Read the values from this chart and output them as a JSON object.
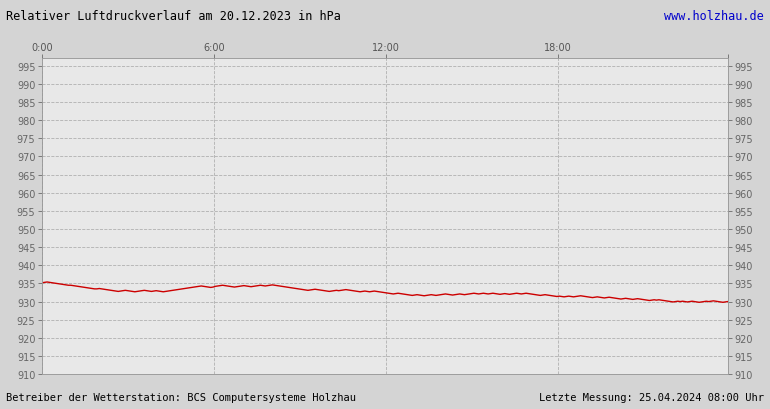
{
  "title": "Relativer Luftdruckverlauf am 20.12.2023 in hPa",
  "url_text": "www.holzhau.de",
  "footer_left": "Betreiber der Wetterstation: BCS Computersysteme Holzhau",
  "footer_right": "Letzte Messung: 25.04.2024 08:00 Uhr",
  "background_color": "#d4d4d4",
  "plot_bg_color": "#e8e8e8",
  "line_color": "#cc0000",
  "grid_color": "#aaaaaa",
  "title_color": "#000000",
  "url_color": "#0000cc",
  "footer_color": "#000000",
  "xlim": [
    0,
    287
  ],
  "ylim": [
    910,
    997
  ],
  "yticks": [
    910,
    915,
    920,
    925,
    930,
    935,
    940,
    945,
    950,
    955,
    960,
    965,
    970,
    975,
    980,
    985,
    990,
    995
  ],
  "xtick_positions": [
    0,
    72,
    144,
    216,
    287
  ],
  "xtick_labels": [
    "0:00",
    "6:00",
    "12:00",
    "18:00",
    ""
  ],
  "pressure_data": [
    935.2,
    935.3,
    935.4,
    935.3,
    935.2,
    935.1,
    935.0,
    934.9,
    934.8,
    934.7,
    934.6,
    934.5,
    934.5,
    934.4,
    934.3,
    934.2,
    934.1,
    934.0,
    933.9,
    933.8,
    933.7,
    933.6,
    933.5,
    933.5,
    933.6,
    933.5,
    933.4,
    933.3,
    933.2,
    933.1,
    933.0,
    932.9,
    932.8,
    932.9,
    933.0,
    933.1,
    933.0,
    932.9,
    932.8,
    932.7,
    932.8,
    932.9,
    933.0,
    933.1,
    933.0,
    932.9,
    932.8,
    932.9,
    933.0,
    932.9,
    932.8,
    932.7,
    932.8,
    932.9,
    933.0,
    933.1,
    933.2,
    933.3,
    933.4,
    933.5,
    933.6,
    933.7,
    933.8,
    933.9,
    934.0,
    934.1,
    934.2,
    934.3,
    934.2,
    934.1,
    934.0,
    933.9,
    934.0,
    934.2,
    934.3,
    934.4,
    934.5,
    934.4,
    934.3,
    934.2,
    934.1,
    934.0,
    934.1,
    934.2,
    934.3,
    934.4,
    934.3,
    934.2,
    934.1,
    934.2,
    934.3,
    934.4,
    934.5,
    934.4,
    934.3,
    934.4,
    934.5,
    934.6,
    934.5,
    934.4,
    934.3,
    934.2,
    934.1,
    934.0,
    933.9,
    933.8,
    933.7,
    933.6,
    933.5,
    933.4,
    933.3,
    933.2,
    933.1,
    933.2,
    933.3,
    933.4,
    933.3,
    933.2,
    933.1,
    933.0,
    932.9,
    932.8,
    932.9,
    933.0,
    933.1,
    933.0,
    933.1,
    933.2,
    933.3,
    933.2,
    933.1,
    933.0,
    932.9,
    932.8,
    932.7,
    932.8,
    932.9,
    932.8,
    932.7,
    932.8,
    932.9,
    932.8,
    932.7,
    932.6,
    932.5,
    932.4,
    932.3,
    932.2,
    932.1,
    932.2,
    932.3,
    932.2,
    932.1,
    932.0,
    931.9,
    931.8,
    931.7,
    931.8,
    931.9,
    931.8,
    931.7,
    931.6,
    931.7,
    931.8,
    931.9,
    931.8,
    931.7,
    931.8,
    931.9,
    932.0,
    932.1,
    932.0,
    931.9,
    931.8,
    931.9,
    932.0,
    932.1,
    932.0,
    931.9,
    932.0,
    932.1,
    932.2,
    932.3,
    932.2,
    932.1,
    932.2,
    932.3,
    932.2,
    932.1,
    932.2,
    932.3,
    932.2,
    932.1,
    932.0,
    932.1,
    932.2,
    932.1,
    932.0,
    932.1,
    932.2,
    932.3,
    932.2,
    932.1,
    932.2,
    932.3,
    932.2,
    932.1,
    932.0,
    931.9,
    931.8,
    931.7,
    931.8,
    931.9,
    931.8,
    931.7,
    931.6,
    931.5,
    931.4,
    931.5,
    931.4,
    931.3,
    931.4,
    931.5,
    931.4,
    931.3,
    931.4,
    931.5,
    931.6,
    931.5,
    931.4,
    931.3,
    931.2,
    931.1,
    931.2,
    931.3,
    931.2,
    931.1,
    931.0,
    931.1,
    931.2,
    931.1,
    931.0,
    930.9,
    930.8,
    930.7,
    930.8,
    930.9,
    930.8,
    930.7,
    930.6,
    930.7,
    930.8,
    930.7,
    930.6,
    930.5,
    930.4,
    930.3,
    930.4,
    930.5,
    930.4,
    930.5,
    930.4,
    930.3,
    930.2,
    930.1,
    930.0,
    929.9,
    930.0,
    930.1,
    930.0,
    930.1,
    930.0,
    929.9,
    930.0,
    930.1,
    930.0,
    929.9,
    929.8,
    929.9,
    930.0,
    930.1,
    930.0,
    930.1,
    930.2,
    930.1,
    930.0,
    929.9,
    929.8,
    929.9,
    930.0
  ]
}
